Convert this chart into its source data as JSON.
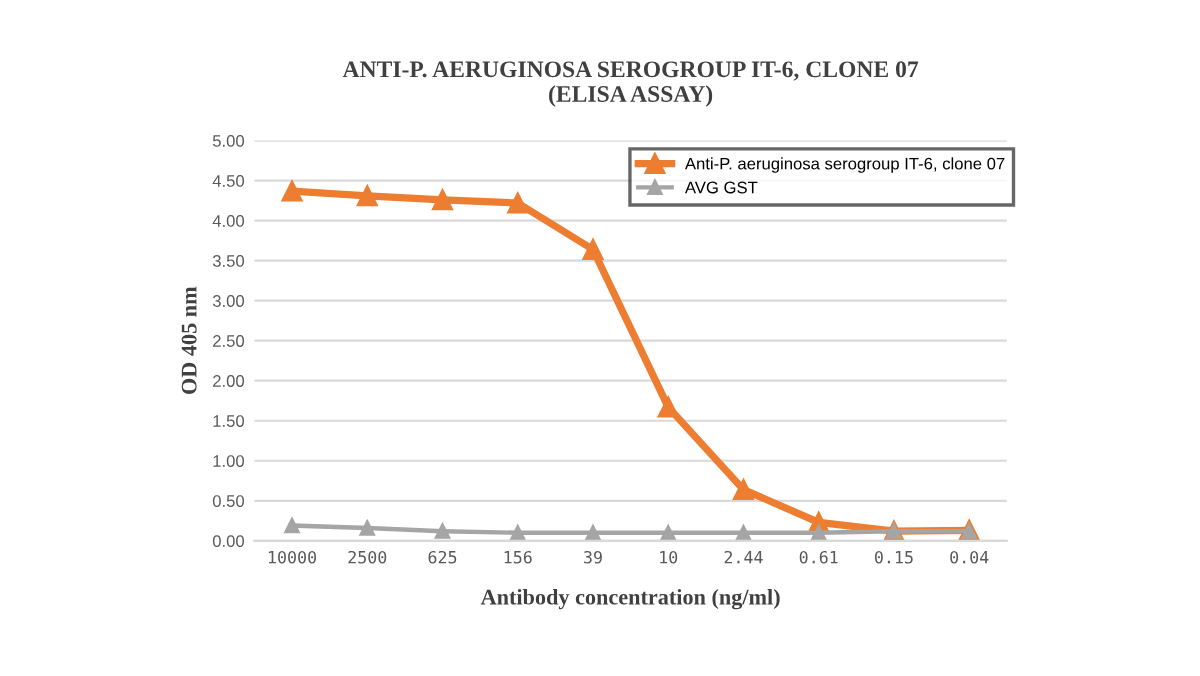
{
  "chart_data": {
    "type": "line",
    "title": "ANTI-P. AERUGINOSA SEROGROUP IT-6, CLONE 07\n(ELISA ASSAY)",
    "xlabel": "Antibody concentration (ng/ml)",
    "ylabel": "OD 405 nm",
    "categories": [
      "10000",
      "2500",
      "625",
      "156",
      "39",
      "10",
      "2.44",
      "0.61",
      "0.15",
      "0.04"
    ],
    "series": [
      {
        "name": "Anti-P. aeruginosa serogroup IT-6, clone 07",
        "color": "#ed7d31",
        "values": [
          4.37,
          4.31,
          4.26,
          4.22,
          3.64,
          1.67,
          0.64,
          0.23,
          0.12,
          0.13
        ]
      },
      {
        "name": "AVG GST",
        "color": "#a5a5a5",
        "values": [
          0.19,
          0.16,
          0.12,
          0.1,
          0.1,
          0.1,
          0.1,
          0.1,
          0.12,
          0.12
        ]
      }
    ],
    "ylim": [
      0,
      5
    ],
    "yticks": [
      {
        "value": 0,
        "label": "0.00"
      },
      {
        "value": 0.5,
        "label": "0.50"
      },
      {
        "value": 1,
        "label": "1.00"
      },
      {
        "value": 1.5,
        "label": "1.50"
      },
      {
        "value": 2,
        "label": "2.00"
      },
      {
        "value": 2.5,
        "label": "2.50"
      },
      {
        "value": 3,
        "label": "3.00"
      },
      {
        "value": 3.5,
        "label": "3.50"
      },
      {
        "value": 4,
        "label": "4.00"
      },
      {
        "value": 4.5,
        "label": "4.50"
      },
      {
        "value": 5,
        "label": "5.00"
      }
    ],
    "grid": "y",
    "legend": "top right",
    "marker": "triangle",
    "line_style": "solid"
  }
}
